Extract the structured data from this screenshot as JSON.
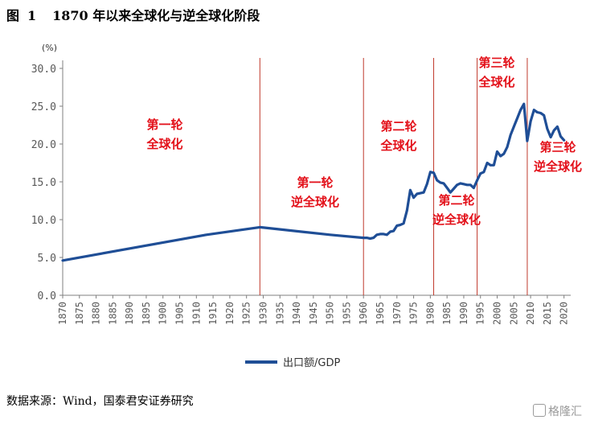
{
  "figure": {
    "title_label": "图",
    "title_number": "1",
    "title_text": "1870 年以来全球化与逆全球化阶段"
  },
  "source_text": "数据来源：Wind，国泰君安证券研究",
  "watermark_text": "格隆汇",
  "colors": {
    "series": "#1f4e96",
    "divider": "#c0392b",
    "annotation": "#e3111a",
    "axis_text": "#595959"
  },
  "chart_data": {
    "type": "line",
    "title": "1870 年以来全球化与逆全球化阶段",
    "ylabel": "(%)",
    "xlabel": "",
    "ylim": [
      0,
      30
    ],
    "xlim": [
      1870,
      2022
    ],
    "yticks": [
      "0.0",
      "5.0",
      "10.0",
      "15.0",
      "20.0",
      "25.0",
      "30.0"
    ],
    "xticks": [
      "1870",
      "1875",
      "1880",
      "1885",
      "1890",
      "1895",
      "1900",
      "1905",
      "1910",
      "1915",
      "1920",
      "1925",
      "1930",
      "1935",
      "1940",
      "1945",
      "1950",
      "1955",
      "1960",
      "1965",
      "1970",
      "1975",
      "1980",
      "1985",
      "1990",
      "1995",
      "2000",
      "2005",
      "2010",
      "2015",
      "2020"
    ],
    "grid": false,
    "legend_position": "bottom-center",
    "series": [
      {
        "name": "出口额/GDP",
        "x": [
          1870,
          1913,
          1929,
          1950,
          1960,
          1961,
          1962,
          1963,
          1964,
          1965,
          1966,
          1967,
          1968,
          1969,
          1970,
          1971,
          1972,
          1973,
          1974,
          1975,
          1976,
          1977,
          1978,
          1979,
          1980,
          1981,
          1982,
          1983,
          1984,
          1985,
          1986,
          1987,
          1988,
          1989,
          1990,
          1991,
          1992,
          1993,
          1994,
          1995,
          1996,
          1997,
          1998,
          1999,
          2000,
          2001,
          2002,
          2003,
          2004,
          2005,
          2006,
          2007,
          2008,
          2009,
          2010,
          2011,
          2012,
          2013,
          2014,
          2015,
          2016,
          2017,
          2018,
          2019,
          2020
        ],
        "y": [
          4.6,
          8.0,
          9.0,
          8.0,
          7.6,
          7.6,
          7.5,
          7.6,
          8.0,
          8.1,
          8.1,
          8.0,
          8.4,
          8.5,
          9.2,
          9.3,
          9.5,
          11.2,
          13.9,
          12.9,
          13.4,
          13.5,
          13.6,
          14.7,
          16.3,
          16.2,
          15.2,
          14.9,
          14.8,
          14.2,
          13.6,
          14.1,
          14.6,
          14.8,
          14.7,
          14.6,
          14.6,
          14.2,
          15.2,
          16.1,
          16.3,
          17.5,
          17.2,
          17.2,
          19.0,
          18.4,
          18.7,
          19.6,
          21.2,
          22.3,
          23.4,
          24.5,
          25.3,
          20.4,
          23.0,
          24.5,
          24.2,
          24.1,
          23.8,
          22.0,
          20.9,
          21.8,
          22.3,
          21.0,
          20.5
        ]
      }
    ],
    "dividers": [
      1929,
      1960,
      1981,
      1994,
      2009
    ],
    "annotations": [
      {
        "lines": [
          "第一轮",
          "全球化"
        ]
      },
      {
        "lines": [
          "第一轮",
          "逆全球化"
        ]
      },
      {
        "lines": [
          "第二轮",
          "全球化"
        ]
      },
      {
        "lines": [
          "第二轮",
          "逆全球化"
        ]
      },
      {
        "lines": [
          "第三轮",
          "全球化"
        ]
      },
      {
        "lines": [
          "第三轮",
          "逆全球化"
        ]
      }
    ]
  }
}
